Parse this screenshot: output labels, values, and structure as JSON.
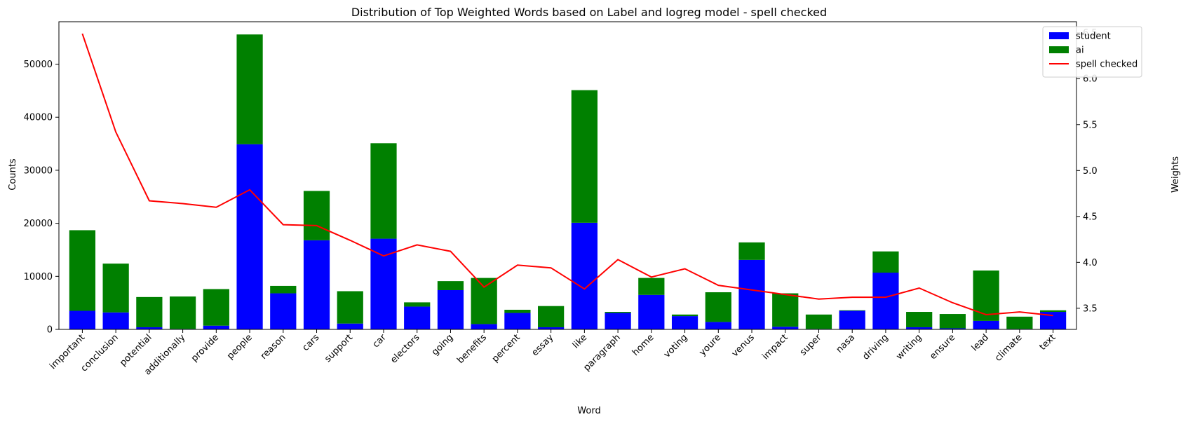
{
  "chart_data": {
    "type": "bar",
    "title": "Distribution of Top Weighted Words based on Label and logreg model - spell checked",
    "xlabel": "Word",
    "ylabel": "Counts",
    "y2label": "Weights",
    "categories": [
      "important",
      "conclusion",
      "potential",
      "additionally",
      "provide",
      "people",
      "reason",
      "cars",
      "support",
      "car",
      "electors",
      "going",
      "benefits",
      "percent",
      "essay",
      "like",
      "paragraph",
      "home",
      "voting",
      "youre",
      "venus",
      "impact",
      "super",
      "nasa",
      "driving",
      "writing",
      "ensure",
      "lead",
      "climate",
      "text"
    ],
    "series": [
      {
        "name": "student",
        "color": "#0000ff",
        "values": [
          3500,
          3200,
          400,
          100,
          700,
          34900,
          6800,
          16800,
          1100,
          17100,
          4300,
          7400,
          1000,
          3100,
          400,
          20100,
          3100,
          6500,
          2500,
          1400,
          13100,
          500,
          100,
          3500,
          10700,
          400,
          200,
          1600,
          100,
          3300
        ]
      },
      {
        "name": "ai",
        "color": "#008000",
        "values": [
          15200,
          9200,
          5700,
          6100,
          6900,
          20700,
          1400,
          9300,
          6100,
          18000,
          800,
          1700,
          8700,
          600,
          4000,
          25000,
          200,
          3200,
          300,
          5600,
          3300,
          6300,
          2700,
          100,
          4000,
          2900,
          2700,
          9500,
          2300,
          300
        ]
      }
    ],
    "line_series": {
      "name": "spell checked",
      "color": "#ff0000",
      "axis": "right",
      "values": [
        6.49,
        5.42,
        4.67,
        4.64,
        4.6,
        4.79,
        4.41,
        4.4,
        4.24,
        4.07,
        4.19,
        4.12,
        3.73,
        3.97,
        3.94,
        3.71,
        4.03,
        3.84,
        3.93,
        3.75,
        3.7,
        3.65,
        3.6,
        3.62,
        3.62,
        3.72,
        3.56,
        3.43,
        3.46,
        3.42
      ]
    },
    "ylim": [
      0,
      58000
    ],
    "y_ticks": [
      0,
      10000,
      20000,
      30000,
      40000,
      50000
    ],
    "y2lim": [
      3.27,
      6.62
    ],
    "y2_ticks": [
      3.5,
      4.0,
      4.5,
      5.0,
      5.5,
      6.0,
      6.5
    ],
    "grid": false,
    "legend_placement": "top-right"
  }
}
